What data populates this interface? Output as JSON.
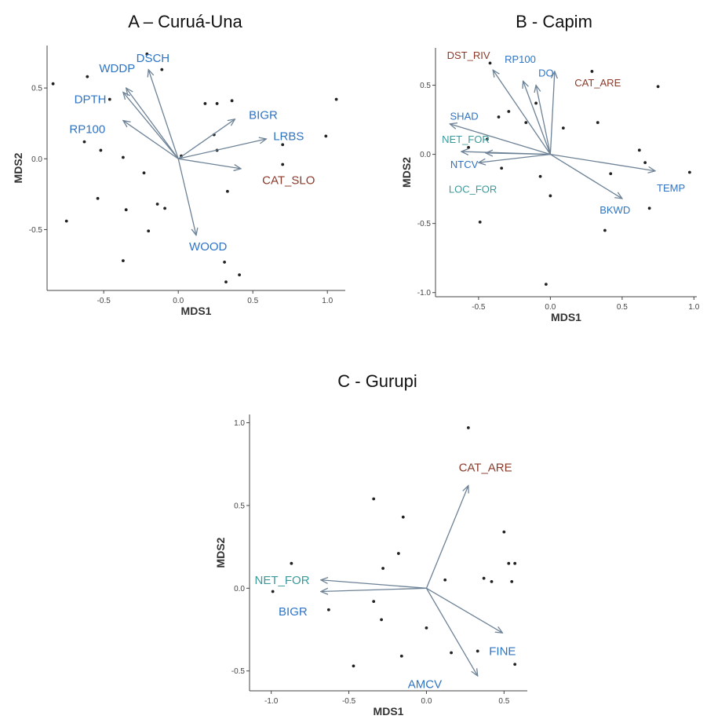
{
  "colors": {
    "blue": "#2e74c4",
    "brown": "#8a3a2a",
    "teal": "#3a9a9a",
    "arrow": "#6d8296",
    "point": "#222222",
    "axis": "#444444"
  },
  "chart_data": [
    {
      "type": "scatter",
      "title": "A – Curuá-Una",
      "xlabel": "MDS1",
      "ylabel": "MDS2",
      "xlim": [
        -0.88,
        1.12
      ],
      "ylim": [
        -0.93,
        0.8
      ],
      "xticks": [
        {
          "v": -0.5,
          "label": "-0.5"
        },
        {
          "v": 0.0,
          "label": "0.0"
        },
        {
          "v": 0.5,
          "label": "0.5"
        },
        {
          "v": 1.0,
          "label": "1.0"
        }
      ],
      "yticks": [
        {
          "v": 0.5,
          "label": "0.5"
        },
        {
          "v": 0.0,
          "label": "0.0"
        },
        {
          "v": -0.5,
          "label": "-0.5"
        }
      ],
      "points": [
        [
          -0.84,
          0.53
        ],
        [
          -0.61,
          0.58
        ],
        [
          -0.46,
          0.42
        ],
        [
          -0.21,
          0.74
        ],
        [
          -0.11,
          0.63
        ],
        [
          -0.63,
          0.12
        ],
        [
          -0.52,
          0.06
        ],
        [
          -0.37,
          0.01
        ],
        [
          -0.23,
          -0.1
        ],
        [
          0.02,
          0.02
        ],
        [
          -0.54,
          -0.28
        ],
        [
          -0.35,
          -0.36
        ],
        [
          -0.14,
          -0.32
        ],
        [
          -0.09,
          -0.35
        ],
        [
          -0.75,
          -0.44
        ],
        [
          -0.2,
          -0.51
        ],
        [
          -0.37,
          -0.72
        ],
        [
          0.18,
          0.39
        ],
        [
          0.26,
          0.39
        ],
        [
          0.24,
          0.17
        ],
        [
          0.36,
          0.41
        ],
        [
          0.26,
          0.06
        ],
        [
          0.33,
          -0.23
        ],
        [
          0.31,
          -0.73
        ],
        [
          0.41,
          -0.82
        ],
        [
          0.32,
          -0.87
        ],
        [
          0.7,
          0.1
        ],
        [
          0.7,
          -0.04
        ],
        [
          0.99,
          0.16
        ],
        [
          1.06,
          0.42
        ]
      ],
      "arrows": [
        {
          "label": "DSCH",
          "x": -0.2,
          "y": 0.63,
          "color": "blue",
          "lx": -0.17,
          "ly": 0.71
        },
        {
          "label": "WDDP",
          "x": -0.35,
          "y": 0.5,
          "color": "blue",
          "lx": -0.41,
          "ly": 0.64
        },
        {
          "label": "DPTH",
          "x": -0.37,
          "y": 0.47,
          "color": "blue",
          "lx": -0.59,
          "ly": 0.42
        },
        {
          "label": "RP100",
          "x": -0.37,
          "y": 0.27,
          "color": "blue",
          "lx": -0.61,
          "ly": 0.21
        },
        {
          "label": "BIGR",
          "x": 0.38,
          "y": 0.28,
          "color": "blue",
          "lx": 0.57,
          "ly": 0.31
        },
        {
          "label": "LRBS",
          "x": 0.59,
          "y": 0.14,
          "color": "blue",
          "lx": 0.74,
          "ly": 0.16
        },
        {
          "label": "CAT_SLO",
          "x": 0.42,
          "y": -0.07,
          "color": "brown",
          "lx": 0.74,
          "ly": -0.15
        },
        {
          "label": "WOOD",
          "x": 0.12,
          "y": -0.54,
          "color": "blue",
          "lx": 0.2,
          "ly": -0.62
        }
      ]
    },
    {
      "type": "scatter",
      "title": "B - Capim",
      "xlabel": "MDS1",
      "ylabel": "MDS2",
      "xlim": [
        -0.8,
        1.02
      ],
      "ylim": [
        -1.03,
        0.77
      ],
      "xticks": [
        {
          "v": -0.5,
          "label": "-0.5"
        },
        {
          "v": 0.0,
          "label": "0.0"
        },
        {
          "v": 0.5,
          "label": "0.5"
        },
        {
          "v": 1.0,
          "label": "1.0"
        }
      ],
      "yticks": [
        {
          "v": 0.5,
          "label": "0.5"
        },
        {
          "v": 0.0,
          "label": "0.0"
        },
        {
          "v": -0.5,
          "label": "-0.5"
        },
        {
          "v": -1.0,
          "label": "-1.0"
        }
      ],
      "points": [
        [
          -0.42,
          0.66
        ],
        [
          -0.29,
          0.31
        ],
        [
          -0.36,
          0.27
        ],
        [
          -0.17,
          0.23
        ],
        [
          -0.1,
          0.37
        ],
        [
          -0.44,
          0.11
        ],
        [
          -0.57,
          0.05
        ],
        [
          -0.34,
          -0.1
        ],
        [
          -0.07,
          -0.16
        ],
        [
          0.09,
          0.19
        ],
        [
          -0.49,
          -0.49
        ],
        [
          0.29,
          0.6
        ],
        [
          0.75,
          0.49
        ],
        [
          0.33,
          0.23
        ],
        [
          0.62,
          0.03
        ],
        [
          0.66,
          -0.06
        ],
        [
          0.97,
          -0.13
        ],
        [
          0.42,
          -0.14
        ],
        [
          0.0,
          -0.3
        ],
        [
          0.38,
          -0.55
        ],
        [
          0.69,
          -0.39
        ],
        [
          -0.03,
          -0.94
        ]
      ],
      "arrows": [
        {
          "label": "DST_RIV",
          "x": -0.4,
          "y": 0.61,
          "color": "brown",
          "lx": -0.57,
          "ly": 0.72
        },
        {
          "label": "RP100",
          "x": -0.19,
          "y": 0.53,
          "color": "blue",
          "lx": -0.21,
          "ly": 0.69
        },
        {
          "label": "DO",
          "x": -0.1,
          "y": 0.5,
          "color": "blue",
          "lx": -0.03,
          "ly": 0.59
        },
        {
          "label": "CAT_ARE",
          "x": 0.03,
          "y": 0.6,
          "color": "brown",
          "lx": 0.33,
          "ly": 0.52
        },
        {
          "label": "SHAD",
          "x": -0.7,
          "y": 0.22,
          "color": "blue",
          "lx": -0.6,
          "ly": 0.28
        },
        {
          "label": "NET_FOR",
          "x": -0.62,
          "y": 0.02,
          "color": "teal",
          "lx": -0.59,
          "ly": 0.11
        },
        {
          "label": "NTCV",
          "x": -0.45,
          "y": 0.01,
          "color": "blue",
          "lx": -0.6,
          "ly": -0.07
        },
        {
          "label": "LOC_FOR",
          "x": -0.5,
          "y": -0.06,
          "color": "teal",
          "lx": -0.54,
          "ly": -0.25
        },
        {
          "label": "TEMP",
          "x": 0.73,
          "y": -0.12,
          "color": "blue",
          "lx": 0.84,
          "ly": -0.24
        },
        {
          "label": "BKWD",
          "x": 0.5,
          "y": -0.32,
          "color": "blue",
          "lx": 0.45,
          "ly": -0.4
        }
      ]
    },
    {
      "type": "scatter",
      "title": "C - Gurupi",
      "xlabel": "MDS1",
      "ylabel": "MDS2",
      "xlim": [
        -1.14,
        0.65
      ],
      "ylim": [
        -0.62,
        1.05
      ],
      "xticks": [
        {
          "v": -1.0,
          "label": "-1.0"
        },
        {
          "v": -0.5,
          "label": "-0.5"
        },
        {
          "v": 0.0,
          "label": "0.0"
        },
        {
          "v": 0.5,
          "label": "0.5"
        }
      ],
      "yticks": [
        {
          "v": 1.0,
          "label": "1.0"
        },
        {
          "v": 0.5,
          "label": "0.5"
        },
        {
          "v": 0.0,
          "label": "0.0"
        },
        {
          "v": -0.5,
          "label": "-0.5"
        }
      ],
      "points": [
        [
          0.27,
          0.97
        ],
        [
          -0.34,
          0.54
        ],
        [
          -0.15,
          0.43
        ],
        [
          -0.87,
          0.15
        ],
        [
          -0.28,
          0.12
        ],
        [
          -0.18,
          0.21
        ],
        [
          0.5,
          0.34
        ],
        [
          0.53,
          0.15
        ],
        [
          0.42,
          0.04
        ],
        [
          0.12,
          0.05
        ],
        [
          0.57,
          0.15
        ],
        [
          0.37,
          0.06
        ],
        [
          0.55,
          0.04
        ],
        [
          -0.99,
          -0.02
        ],
        [
          -0.63,
          -0.13
        ],
        [
          -0.34,
          -0.08
        ],
        [
          -0.29,
          -0.19
        ],
        [
          0.0,
          -0.24
        ],
        [
          -0.16,
          -0.41
        ],
        [
          0.16,
          -0.39
        ],
        [
          -0.47,
          -0.47
        ],
        [
          0.33,
          -0.38
        ],
        [
          0.57,
          -0.46
        ]
      ],
      "arrows": [
        {
          "label": "CAT_ARE",
          "x": 0.27,
          "y": 0.62,
          "color": "brown",
          "lx": 0.38,
          "ly": 0.73
        },
        {
          "label": "NET_FOR",
          "x": -0.68,
          "y": 0.05,
          "color": "teal",
          "lx": -0.93,
          "ly": 0.05
        },
        {
          "label": "BIGR",
          "x": -0.68,
          "y": -0.02,
          "color": "blue",
          "lx": -0.86,
          "ly": -0.14
        },
        {
          "label": "FINE",
          "x": 0.49,
          "y": -0.27,
          "color": "blue",
          "lx": 0.49,
          "ly": -0.38
        },
        {
          "label": "AMCV",
          "x": 0.33,
          "y": -0.53,
          "color": "blue",
          "lx": -0.01,
          "ly": -0.58
        }
      ]
    }
  ]
}
